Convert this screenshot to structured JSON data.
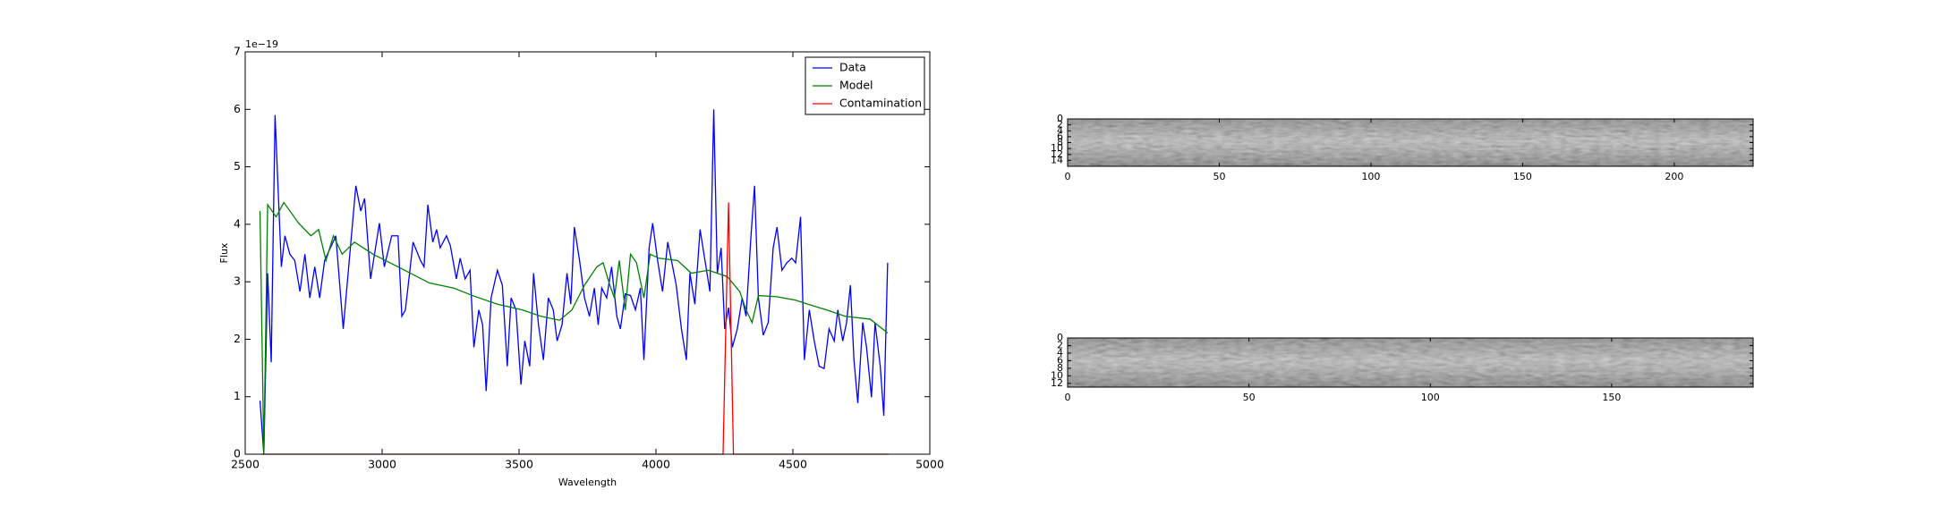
{
  "chart_data": [
    {
      "type": "line",
      "y_offset_label": "1e−19",
      "xlabel": "Wavelength",
      "ylabel": "Flux",
      "xlim": [
        2500,
        5000
      ],
      "ylim": [
        0,
        7
      ],
      "xticks": [
        2500,
        3000,
        3500,
        4000,
        4500,
        5000
      ],
      "yticks": [
        0,
        1,
        2,
        3,
        4,
        5,
        6,
        7
      ],
      "legend": "upper right",
      "series": [
        {
          "name": "Data",
          "color": "#0000ff",
          "x": [
            2554,
            2568,
            2582,
            2595,
            2609,
            2632,
            2645,
            2663,
            2681,
            2700,
            2718,
            2736,
            2754,
            2772,
            2790,
            2831,
            2858,
            2904,
            2922,
            2936,
            2958,
            2990,
            3008,
            3035,
            3058,
            3072,
            3085,
            3113,
            3140,
            3153,
            3167,
            3185,
            3199,
            3212,
            3235,
            3249,
            3271,
            3285,
            3303,
            3321,
            3335,
            3353,
            3367,
            3380,
            3398,
            3421,
            3439,
            3457,
            3471,
            3489,
            3507,
            3521,
            3539,
            3553,
            3571,
            3589,
            3607,
            3625,
            3639,
            3657,
            3675,
            3689,
            3702,
            3721,
            3739,
            3757,
            3775,
            3789,
            3802,
            3820,
            3838,
            3857,
            3870,
            3888,
            3907,
            3925,
            3943,
            3956,
            3975,
            3988,
            4006,
            4024,
            4043,
            4061,
            4074,
            4093,
            4111,
            4124,
            4142,
            4161,
            4179,
            4197,
            4211,
            4224,
            4238,
            4251,
            4265,
            4279,
            4297,
            4315,
            4329,
            4347,
            4360,
            4374,
            4392,
            4410,
            4428,
            4442,
            4460,
            4478,
            4496,
            4510,
            4528,
            4542,
            4560,
            4578,
            4596,
            4614,
            4632,
            4651,
            4664,
            4682,
            4696,
            4710,
            4723,
            4737,
            4755,
            4769,
            4787,
            4800,
            4819,
            4832,
            4846
          ],
          "values": [
            0.93,
            0,
            3.15,
            1.6,
            5.9,
            3.26,
            3.8,
            3.48,
            3.37,
            2.83,
            3.48,
            2.72,
            3.26,
            2.72,
            3.37,
            3.8,
            2.18,
            4.67,
            4.23,
            4.45,
            3.05,
            4.02,
            3.26,
            3.8,
            3.8,
            2.4,
            2.51,
            3.69,
            3.37,
            3.26,
            4.34,
            3.69,
            3.91,
            3.59,
            3.8,
            3.63,
            3.05,
            3.41,
            3.05,
            3.2,
            1.86,
            2.51,
            2.25,
            1.1,
            2.72,
            3.2,
            2.94,
            1.53,
            2.72,
            2.51,
            1.21,
            1.97,
            1.53,
            3.15,
            2.25,
            1.64,
            2.72,
            2.51,
            1.97,
            2.25,
            3.15,
            2.61,
            3.95,
            3.37,
            2.72,
            2.4,
            2.89,
            2.25,
            2.89,
            2.72,
            3.26,
            2.4,
            2.18,
            2.79,
            2.76,
            2.51,
            2.89,
            1.64,
            3.59,
            4.02,
            3.37,
            2.83,
            3.69,
            3.26,
            2.94,
            2.18,
            1.64,
            3.15,
            2.61,
            3.91,
            3.37,
            2.83,
            6.0,
            3.15,
            3.59,
            2.18,
            2.55,
            1.86,
            2.18,
            2.72,
            2.4,
            3.8,
            4.67,
            2.72,
            2.07,
            2.29,
            3.59,
            3.95,
            3.2,
            3.33,
            3.41,
            3.33,
            4.13,
            1.64,
            2.51,
            1.97,
            1.53,
            1.49,
            2.18,
            1.97,
            2.51,
            1.97,
            2.29,
            2.94,
            1.64,
            0.89,
            2.29,
            1.86,
            0.99,
            2.29,
            1.53,
            0.67,
            3.33
          ]
        },
        {
          "name": "Model",
          "color": "#008000",
          "x": [
            2554,
            2568,
            2582,
            2613,
            2641,
            2695,
            2740,
            2768,
            2795,
            2822,
            2854,
            2899,
            2967,
            3058,
            3172,
            3262,
            3330,
            3421,
            3512,
            3580,
            3648,
            3693,
            3739,
            3784,
            3807,
            3829,
            3848,
            3866,
            3888,
            3907,
            3929,
            3956,
            3979,
            4011,
            4079,
            4129,
            4192,
            4260,
            4306,
            4329,
            4351,
            4374,
            4442,
            4510,
            4555,
            4623,
            4691,
            4782,
            4846
          ],
          "values": [
            4.23,
            0,
            4.34,
            4.13,
            4.38,
            4.02,
            3.8,
            3.91,
            3.37,
            3.8,
            3.48,
            3.69,
            3.48,
            3.26,
            2.98,
            2.89,
            2.76,
            2.61,
            2.51,
            2.4,
            2.33,
            2.51,
            2.94,
            3.26,
            3.33,
            2.98,
            2.72,
            3.37,
            2.51,
            3.48,
            3.33,
            2.72,
            3.48,
            3.41,
            3.37,
            3.15,
            3.2,
            3.09,
            2.83,
            2.51,
            2.29,
            2.76,
            2.74,
            2.68,
            2.61,
            2.51,
            2.4,
            2.35,
            2.11
          ]
        },
        {
          "name": "Contamination",
          "color": "#ff0000",
          "x": [
            2560,
            4245,
            4265,
            4283,
            4850
          ],
          "values": [
            0,
            0,
            4.38,
            0,
            0
          ]
        }
      ]
    },
    {
      "type": "image",
      "xlim": [
        0,
        226
      ],
      "ylim": [
        16,
        0
      ],
      "xticks": [
        0,
        50,
        100,
        150,
        200
      ],
      "yticks": [
        0,
        2,
        4,
        6,
        8,
        10,
        12,
        14
      ]
    },
    {
      "type": "image",
      "xlim": [
        0,
        189
      ],
      "ylim": [
        13,
        0
      ],
      "xticks": [
        0,
        50,
        100,
        150
      ],
      "yticks": [
        0,
        2,
        4,
        6,
        8,
        10,
        12
      ]
    }
  ]
}
